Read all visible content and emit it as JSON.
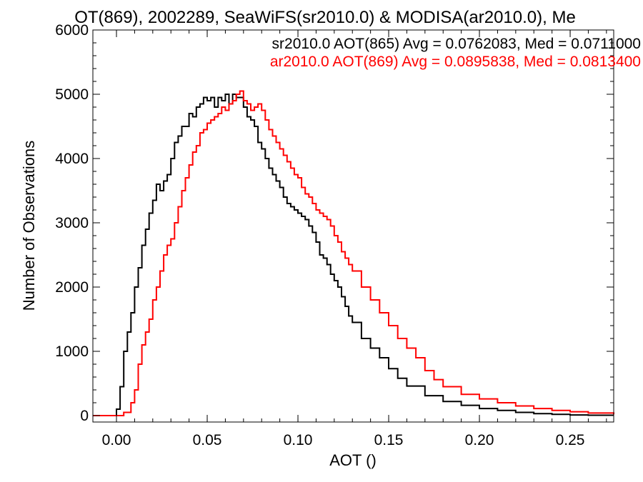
{
  "chart_data": {
    "type": "line",
    "title": "OT(869), 2002289, SeaWiFS(sr2010.0) & MODISA(ar2010.0), Me",
    "xlabel": "AOT ()",
    "ylabel": "Number of Observations",
    "xlim": [
      -0.013,
      0.274
    ],
    "ylim": [
      -100,
      6000
    ],
    "x_ticks": [
      0.0,
      0.05,
      0.1,
      0.15,
      0.2,
      0.25
    ],
    "x_tick_labels": [
      "0.00",
      "0.05",
      "0.10",
      "0.15",
      "0.20",
      "0.25"
    ],
    "y_ticks": [
      0,
      1000,
      2000,
      3000,
      4000,
      5000,
      6000
    ],
    "y_tick_labels": [
      "0",
      "1000",
      "2000",
      "3000",
      "4000",
      "5000",
      "6000"
    ],
    "grid": false,
    "legend_position": "top-right",
    "colors": {
      "black": "#000000",
      "red": "#ff0000"
    },
    "series": [
      {
        "name": "sr2010.0 AOT(865) Avg = 0.0762083, Med = 0.0711000",
        "color": "#000000",
        "step": "post",
        "x": [
          -0.013,
          0.0,
          0.002,
          0.004,
          0.006,
          0.008,
          0.01,
          0.012,
          0.014,
          0.016,
          0.018,
          0.02,
          0.022,
          0.024,
          0.026,
          0.028,
          0.03,
          0.032,
          0.034,
          0.036,
          0.038,
          0.04,
          0.042,
          0.044,
          0.046,
          0.048,
          0.05,
          0.052,
          0.054,
          0.056,
          0.058,
          0.06,
          0.062,
          0.064,
          0.066,
          0.068,
          0.07,
          0.072,
          0.074,
          0.076,
          0.078,
          0.08,
          0.082,
          0.084,
          0.086,
          0.088,
          0.09,
          0.092,
          0.094,
          0.096,
          0.098,
          0.1,
          0.102,
          0.104,
          0.106,
          0.108,
          0.11,
          0.112,
          0.114,
          0.116,
          0.118,
          0.12,
          0.122,
          0.124,
          0.126,
          0.128,
          0.13,
          0.135,
          0.14,
          0.145,
          0.15,
          0.155,
          0.16,
          0.17,
          0.18,
          0.19,
          0.2,
          0.21,
          0.22,
          0.23,
          0.24,
          0.25,
          0.26,
          0.274
        ],
        "y": [
          0,
          100,
          450,
          1000,
          1300,
          1600,
          2000,
          2300,
          2650,
          2900,
          3150,
          3350,
          3600,
          3500,
          3650,
          3750,
          4000,
          4250,
          4350,
          4500,
          4500,
          4700,
          4650,
          4800,
          4850,
          4950,
          4900,
          4950,
          4800,
          4950,
          4900,
          5000,
          4850,
          5000,
          4950,
          4950,
          4800,
          4650,
          4600,
          4500,
          4250,
          4150,
          4000,
          3850,
          3750,
          3650,
          3550,
          3400,
          3300,
          3250,
          3200,
          3150,
          3100,
          3050,
          2950,
          2850,
          2700,
          2500,
          2450,
          2350,
          2200,
          2100,
          2000,
          1850,
          1700,
          1550,
          1450,
          1200,
          1050,
          900,
          730,
          580,
          460,
          310,
          220,
          160,
          110,
          80,
          50,
          30,
          20,
          10,
          5,
          5
        ]
      },
      {
        "name": "ar2010.0 AOT(869) Avg = 0.0895838, Med = 0.0813400",
        "color": "#ff0000",
        "step": "post",
        "x": [
          -0.013,
          0.004,
          0.008,
          0.01,
          0.012,
          0.014,
          0.016,
          0.018,
          0.02,
          0.022,
          0.024,
          0.026,
          0.028,
          0.03,
          0.032,
          0.034,
          0.036,
          0.038,
          0.04,
          0.042,
          0.044,
          0.046,
          0.048,
          0.05,
          0.052,
          0.054,
          0.056,
          0.058,
          0.06,
          0.062,
          0.064,
          0.066,
          0.068,
          0.07,
          0.072,
          0.074,
          0.076,
          0.078,
          0.08,
          0.082,
          0.084,
          0.086,
          0.088,
          0.09,
          0.092,
          0.094,
          0.096,
          0.098,
          0.1,
          0.102,
          0.104,
          0.106,
          0.108,
          0.11,
          0.112,
          0.114,
          0.116,
          0.118,
          0.12,
          0.122,
          0.124,
          0.126,
          0.128,
          0.13,
          0.135,
          0.14,
          0.145,
          0.15,
          0.155,
          0.16,
          0.165,
          0.17,
          0.175,
          0.18,
          0.19,
          0.2,
          0.21,
          0.22,
          0.23,
          0.24,
          0.25,
          0.26,
          0.274
        ],
        "y": [
          0,
          50,
          200,
          400,
          800,
          1100,
          1300,
          1500,
          1800,
          2000,
          2250,
          2500,
          2650,
          2750,
          3000,
          3250,
          3500,
          3700,
          3900,
          4100,
          4200,
          4400,
          4450,
          4550,
          4600,
          4650,
          4700,
          4800,
          4750,
          4850,
          4900,
          5000,
          5050,
          4900,
          4850,
          4750,
          4800,
          4850,
          4750,
          4600,
          4450,
          4350,
          4250,
          4150,
          4050,
          3950,
          3850,
          3750,
          3700,
          3550,
          3450,
          3400,
          3300,
          3200,
          3150,
          3100,
          3050,
          2950,
          2800,
          2700,
          2550,
          2450,
          2350,
          2250,
          2000,
          1800,
          1600,
          1400,
          1200,
          1050,
          900,
          700,
          560,
          450,
          330,
          260,
          200,
          150,
          110,
          80,
          60,
          40,
          20
        ]
      }
    ]
  }
}
